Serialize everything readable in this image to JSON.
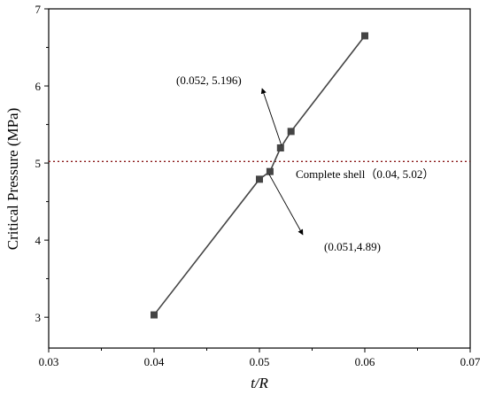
{
  "chart_data": {
    "type": "line",
    "title": "",
    "xlabel": "t/R",
    "ylabel": "Critical Pressure (MPa)",
    "xlim": [
      0.03,
      0.07
    ],
    "ylim": [
      2.6,
      7.0
    ],
    "x_ticks": [
      "0.03",
      "0.04",
      "0.05",
      "0.06",
      "0.07"
    ],
    "y_ticks": [
      "3",
      "4",
      "5",
      "6",
      "7"
    ],
    "grid": false,
    "legend": "none",
    "series": [
      {
        "x": [
          0.04,
          0.05,
          0.051,
          0.052,
          0.053,
          0.06
        ],
        "y": [
          3.03,
          4.79,
          4.89,
          5.196,
          5.41,
          6.65
        ],
        "color": "#444444",
        "marker": "square"
      }
    ],
    "reference_line": {
      "y": 5.02,
      "color": "#8B1A1A",
      "style": "dotted"
    },
    "annotations": [
      {
        "text": "(0.052, 5.196)",
        "point": [
          0.052,
          5.196
        ]
      },
      {
        "text": "(0.051,4.89)",
        "point": [
          0.051,
          4.89
        ]
      },
      {
        "text": "Complete shell（0.04, 5.02）",
        "point": [
          0.051,
          5.02
        ]
      }
    ]
  }
}
